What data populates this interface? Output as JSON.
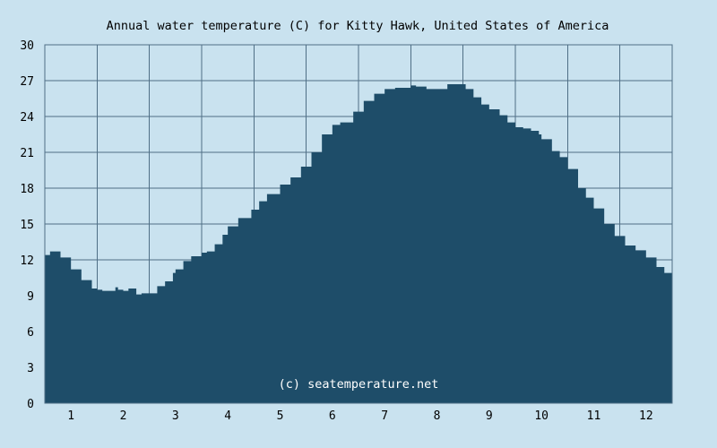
{
  "chart_data": {
    "type": "area",
    "title": "Annual water temperature (C) for Kitty Hawk, United States of America",
    "watermark": "(c) seatemperature.net",
    "xlabel": "",
    "ylabel": "",
    "x_ticks": [
      "1",
      "2",
      "3",
      "4",
      "5",
      "6",
      "7",
      "8",
      "9",
      "10",
      "11",
      "12"
    ],
    "y_ticks": [
      0,
      3,
      6,
      9,
      12,
      15,
      18,
      21,
      24,
      27,
      30
    ],
    "xlim": [
      0.5,
      12.5
    ],
    "ylim": [
      0,
      30
    ],
    "grid": true,
    "colors": {
      "background": "#c9e2ef",
      "fill": "#1e4d69",
      "grid": "#4f6f86"
    },
    "series": [
      {
        "x": [
          0.5,
          0.6,
          0.8,
          1.0,
          1.2,
          1.4,
          1.5,
          1.6,
          1.75,
          1.85,
          1.9,
          2.0,
          2.1,
          2.25,
          2.35,
          2.5,
          2.65,
          2.8,
          2.95,
          3.0,
          3.15,
          3.3,
          3.5,
          3.6,
          3.75,
          3.9,
          4.0,
          4.2,
          4.45,
          4.6,
          4.75,
          5.0,
          5.2,
          5.4,
          5.6,
          5.8,
          6.0,
          6.15,
          6.4,
          6.6,
          6.8,
          7.0,
          7.2,
          7.4,
          7.5,
          7.6,
          7.8,
          8.0,
          8.2,
          8.4,
          8.55,
          8.7,
          8.85,
          9.0,
          9.2,
          9.35,
          9.5,
          9.65,
          9.8,
          9.95,
          10.0,
          10.2,
          10.35,
          10.5,
          10.7,
          10.85,
          11.0,
          11.2,
          11.4,
          11.6,
          11.8,
          12.0,
          12.2,
          12.35,
          12.5
        ],
        "values": [
          12.4,
          12.7,
          12.2,
          11.2,
          10.3,
          9.6,
          9.5,
          9.4,
          9.4,
          9.7,
          9.5,
          9.4,
          9.6,
          9.1,
          9.2,
          9.2,
          9.8,
          10.2,
          10.9,
          11.2,
          11.9,
          12.3,
          12.6,
          12.7,
          13.3,
          14.1,
          14.8,
          15.5,
          16.2,
          16.9,
          17.5,
          18.3,
          18.9,
          19.8,
          21.0,
          22.5,
          23.3,
          23.5,
          24.4,
          25.3,
          25.9,
          26.3,
          26.4,
          26.4,
          26.6,
          26.5,
          26.3,
          26.3,
          26.7,
          26.7,
          26.3,
          25.6,
          25.0,
          24.6,
          24.1,
          23.5,
          23.1,
          23.0,
          22.8,
          22.5,
          22.1,
          21.1,
          20.6,
          19.6,
          18.0,
          17.2,
          16.3,
          15.0,
          14.0,
          13.2,
          12.8,
          12.2,
          11.4,
          10.9,
          10.9
        ]
      }
    ]
  }
}
